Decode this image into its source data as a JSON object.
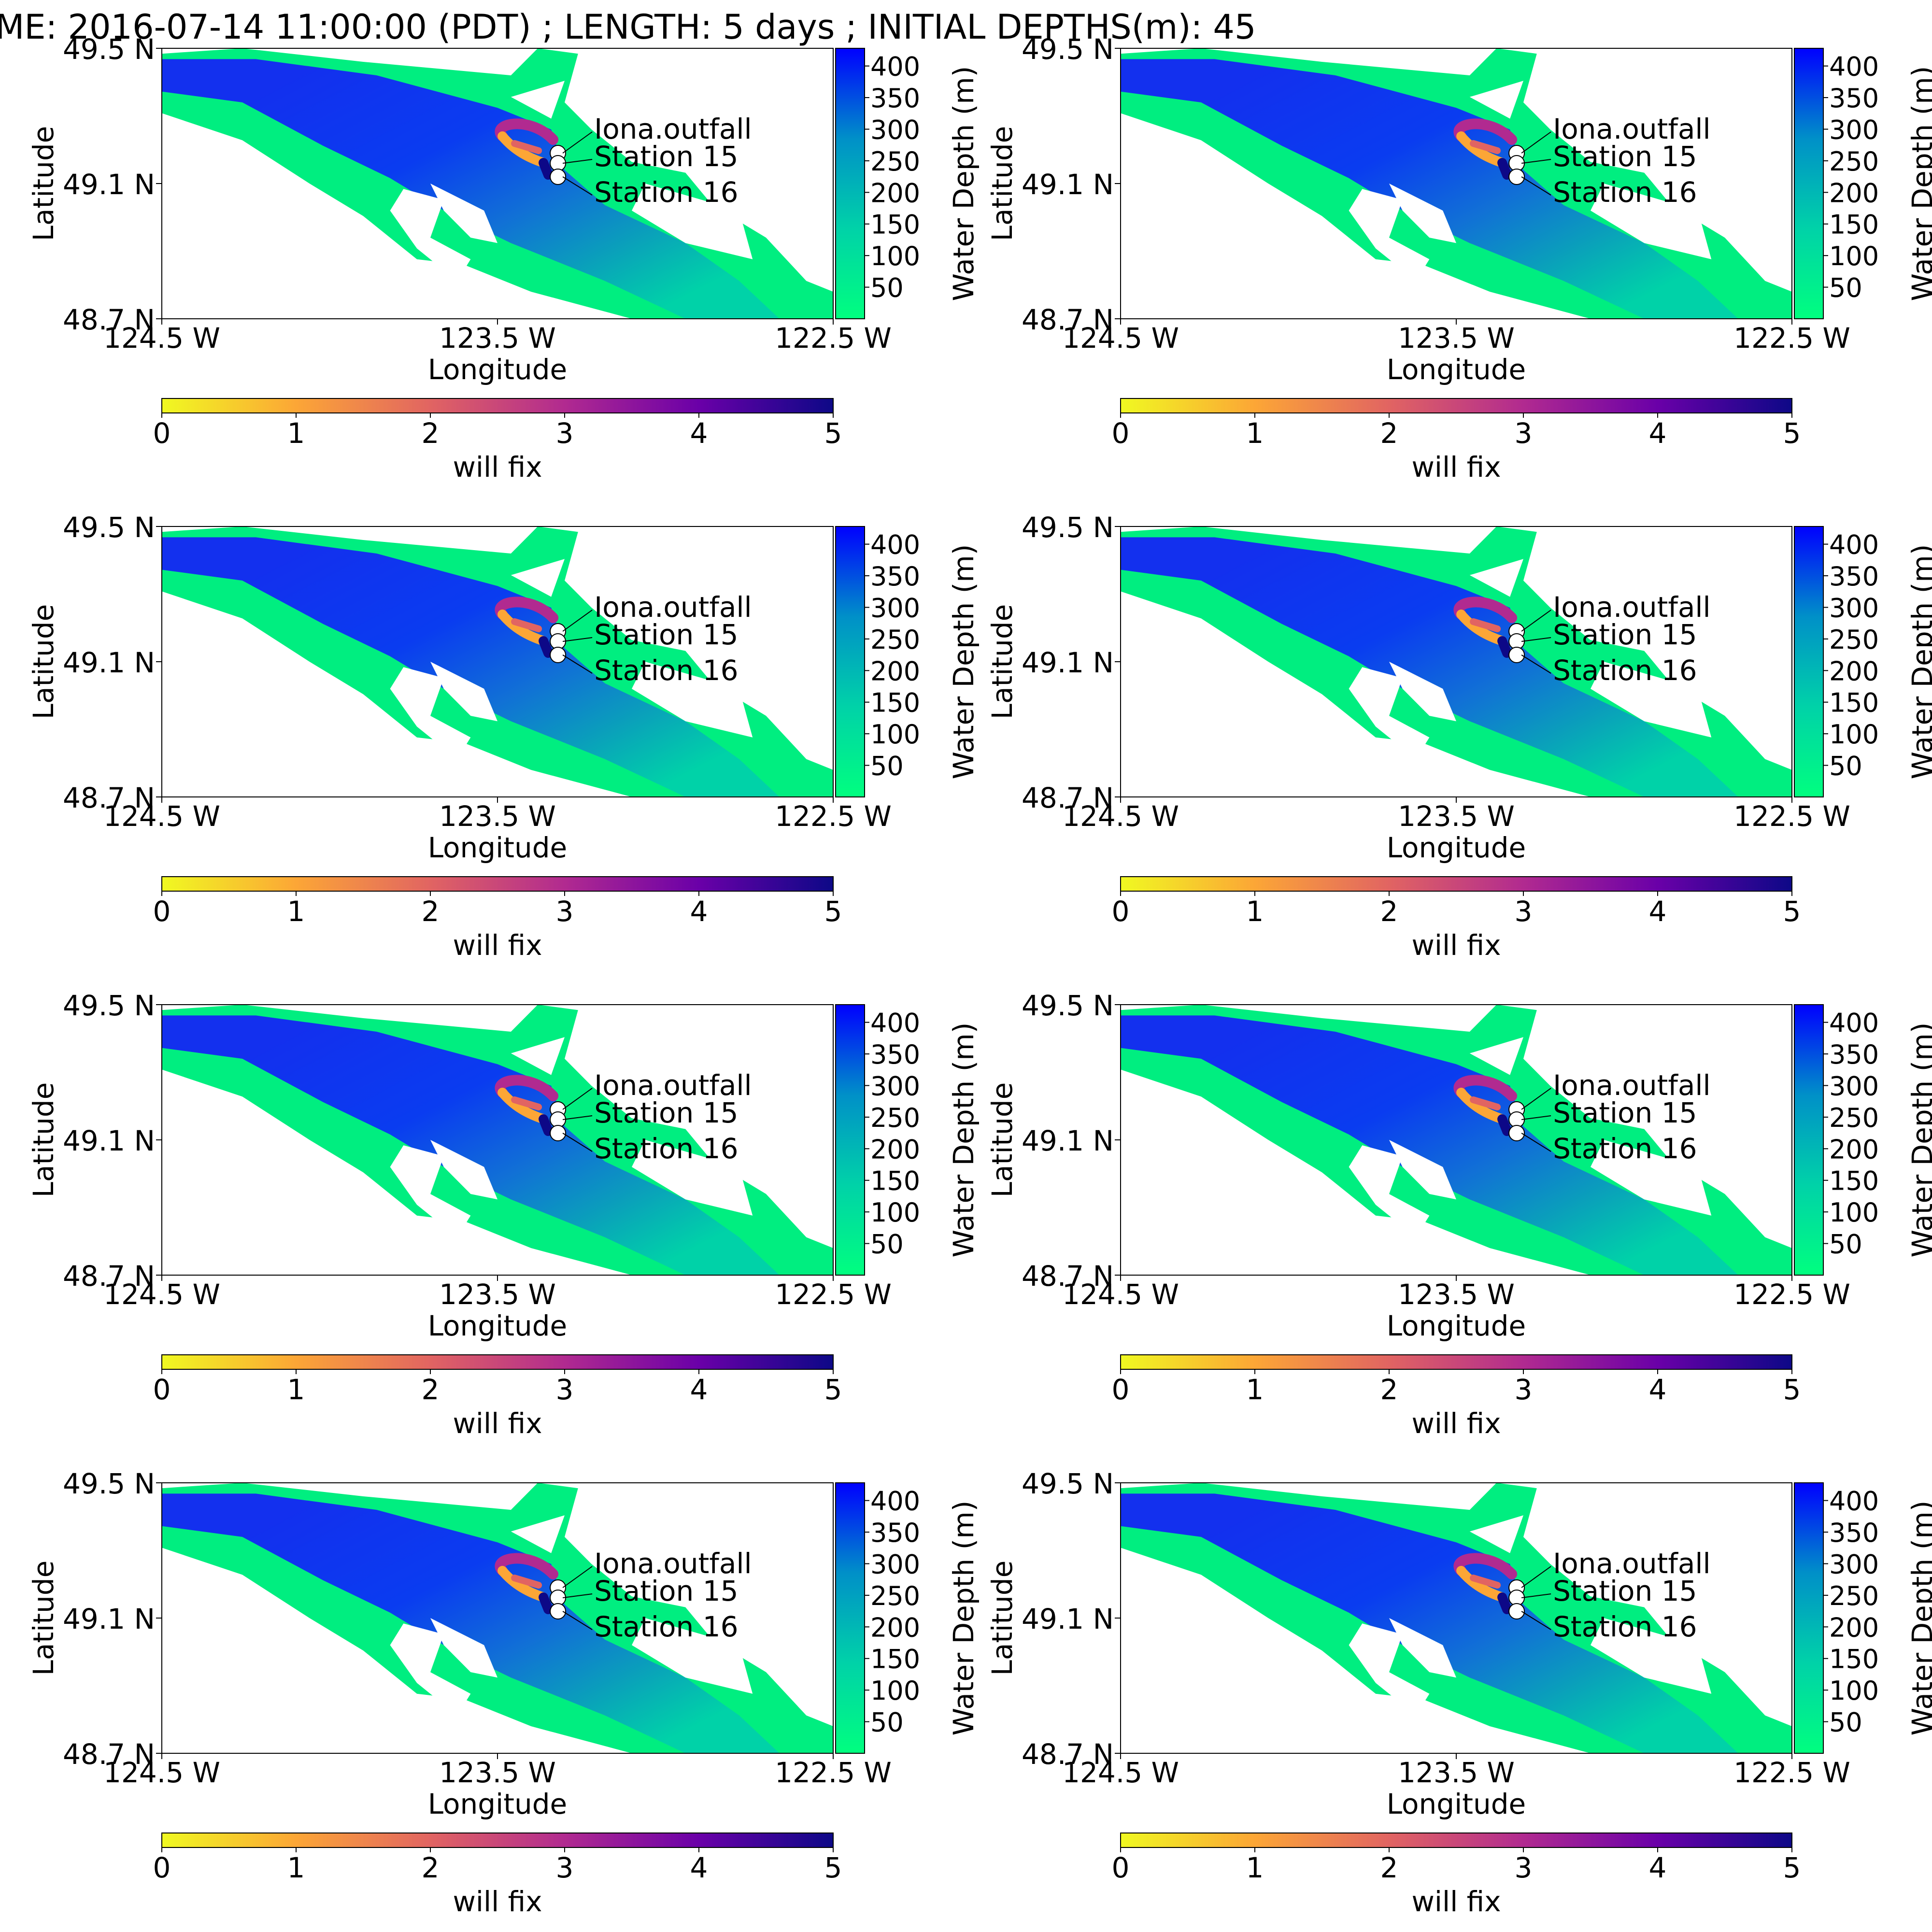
{
  "figure": {
    "suptitle": "ME: 2016-07-14 11:00:00 (PDT) ; LENGTH: 5 days ; INITIAL DEPTHS(m): 45"
  },
  "panel": {
    "xlabel": "Longitude",
    "ylabel": "Latitude",
    "lat_ticks": [
      "49.5 N",
      "49.1 N",
      "48.7 N"
    ],
    "lon_ticks": [
      "124.5 W",
      "123.5 W",
      "122.5 W"
    ],
    "lon_range": [
      -124.5,
      -122.5
    ],
    "lat_range": [
      48.7,
      49.5
    ],
    "depth_colorbar": {
      "label": "Water Depth (m)",
      "ticks": [
        "400",
        "350",
        "300",
        "250",
        "200",
        "150",
        "100",
        "50"
      ],
      "tick_values": [
        400,
        350,
        300,
        250,
        200,
        150,
        100,
        50
      ],
      "range": [
        0,
        428
      ],
      "colors": [
        "#00ff7f",
        "#00d2a8",
        "#0090c8",
        "#0000ff"
      ]
    },
    "time_colorbar": {
      "label": "will fix",
      "ticks": [
        "0",
        "1",
        "2",
        "3",
        "4",
        "5"
      ],
      "range": [
        0,
        5
      ],
      "colors": [
        "#f0f921",
        "#fca636",
        "#e16462",
        "#b12a90",
        "#6a00a8",
        "#0d0887"
      ]
    },
    "stations": [
      {
        "name": "Iona.outfall",
        "lon": -123.32,
        "lat": 49.19
      },
      {
        "name": "Station 15",
        "lon": -123.32,
        "lat": 49.16
      },
      {
        "name": "Station 16",
        "lon": -123.32,
        "lat": 49.12
      }
    ]
  },
  "panels": [
    {
      "id": "panel-1"
    },
    {
      "id": "panel-2"
    },
    {
      "id": "panel-3"
    },
    {
      "id": "panel-4"
    },
    {
      "id": "panel-5"
    },
    {
      "id": "panel-6"
    },
    {
      "id": "panel-7"
    },
    {
      "id": "panel-8"
    }
  ]
}
